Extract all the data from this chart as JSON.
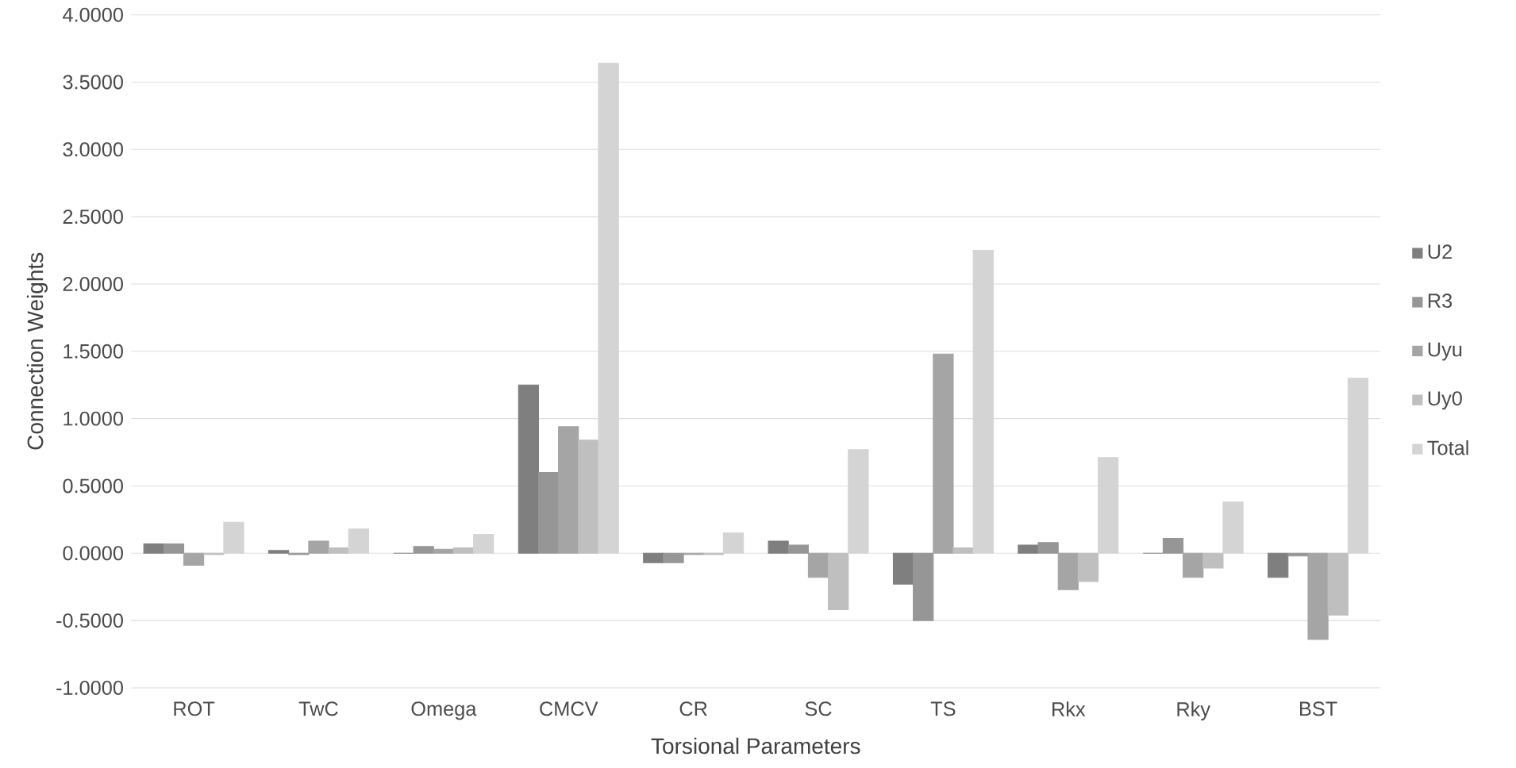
{
  "chart_data": {
    "type": "bar",
    "xlabel": "Torsional Parameters",
    "ylabel": "Connection Weights",
    "categories": [
      "ROT",
      "TwC",
      "Omega",
      "CMCV",
      "CR",
      "SC",
      "TS",
      "Rkx",
      "Rky",
      "BST"
    ],
    "series": [
      {
        "name": "U2",
        "color": "#7f7f7f",
        "values": [
          0.07,
          0.02,
          0,
          1.25,
          -0.07,
          0.09,
          -0.23,
          0.06,
          0,
          -0.18
        ]
      },
      {
        "name": "R3",
        "color": "#969696",
        "values": [
          0.07,
          -0.01,
          0.05,
          0.6,
          -0.07,
          0.06,
          -0.5,
          0.08,
          0.11,
          -0.02
        ]
      },
      {
        "name": "Uyu",
        "color": "#a5a5a5",
        "values": [
          -0.09,
          0.09,
          0.03,
          0.94,
          -0.01,
          -0.18,
          1.48,
          -0.27,
          -0.18,
          -0.64
        ]
      },
      {
        "name": "Uy0",
        "color": "#bfbfbf",
        "values": [
          -0.01,
          0.04,
          0.04,
          0.84,
          -0.01,
          -0.42,
          0.04,
          -0.21,
          -0.11,
          -0.46
        ]
      },
      {
        "name": "Total",
        "color": "#d4d4d4",
        "values": [
          0.23,
          0.18,
          0.14,
          3.64,
          0.15,
          0.77,
          2.25,
          0.71,
          0.38,
          1.3
        ]
      }
    ],
    "ylim": [
      -1,
      4
    ],
    "yticks": [
      {
        "value": -1,
        "label": "-1.0000"
      },
      {
        "value": -0.5,
        "label": "-0.5000"
      },
      {
        "value": 0,
        "label": "0.0000"
      },
      {
        "value": 0.5,
        "label": "0.5000"
      },
      {
        "value": 1,
        "label": "1.0000"
      },
      {
        "value": 1.5,
        "label": "1.5000"
      },
      {
        "value": 2,
        "label": "2.0000"
      },
      {
        "value": 2.5,
        "label": "2.5000"
      },
      {
        "value": 3,
        "label": "3.0000"
      },
      {
        "value": 3.5,
        "label": "3.5000"
      },
      {
        "value": 4,
        "label": "4.0000"
      }
    ],
    "grid": "y",
    "legend": "right"
  }
}
